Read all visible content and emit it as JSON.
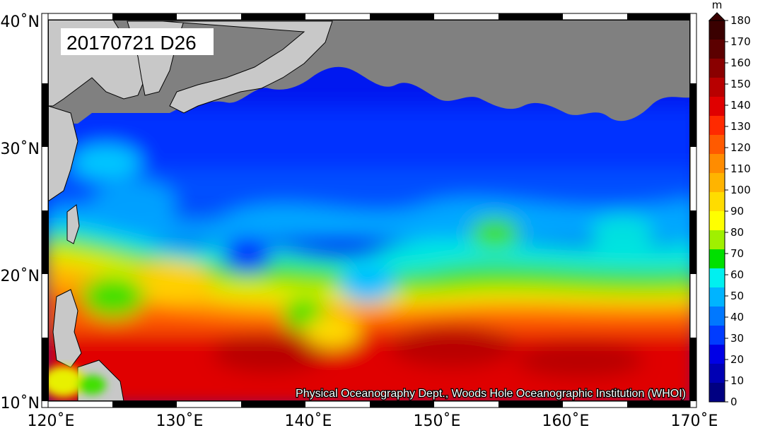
{
  "title": "20170721 D26",
  "credit": "Physical Oceanography Dept., Woods Hole Oceanographic Institution (WHOI)",
  "colorbar": {
    "unit": "m",
    "labels": [
      "180",
      "170",
      "160",
      "150",
      "140",
      "130",
      "120",
      "110",
      "100",
      "90",
      "80",
      "70",
      "60",
      "50",
      "40",
      "30",
      "20",
      "10",
      "0"
    ],
    "colors": [
      "#3a0000",
      "#5c0000",
      "#8a0000",
      "#b80000",
      "#e00000",
      "#ff2a00",
      "#ff5a00",
      "#ff8c00",
      "#ffb400",
      "#ffdc00",
      "#ffff00",
      "#a0f000",
      "#00e000",
      "#00f0f0",
      "#00b4ff",
      "#0078ff",
      "#003cff",
      "#0000e6",
      "#0000b4",
      "#000082"
    ]
  },
  "x_axis": {
    "ticks": [
      "120˚E",
      "130˚E",
      "140˚E",
      "150˚E",
      "160˚E",
      "170˚E"
    ]
  },
  "y_axis": {
    "ticks": [
      "40˚N",
      "30˚N",
      "20˚N",
      "10˚N"
    ]
  },
  "colors": {
    "land": "#c8c8c8",
    "no_data": "#808080",
    "frame": "#000000"
  }
}
